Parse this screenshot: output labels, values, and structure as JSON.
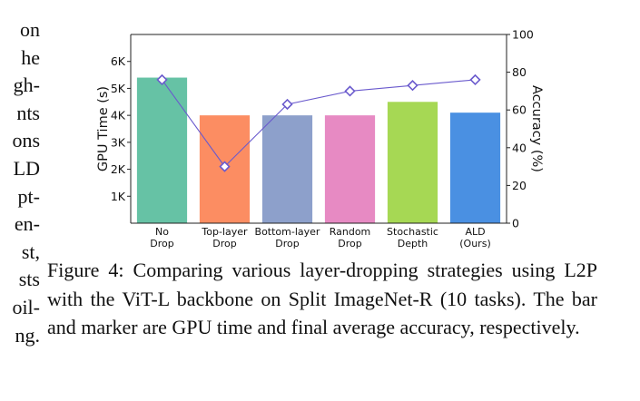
{
  "left_column_fragments": [
    "on",
    "he",
    "gh-",
    "nts",
    "ons",
    "LD",
    "pt-",
    "en-",
    "st,",
    "sts",
    "oil-",
    "ng."
  ],
  "caption": "Figure 4: Comparing various layer-dropping strategies using L2P with the ViT-L backbone on Split ImageNet-R (10 tasks). The bar and marker are GPU time and final average accuracy, respectively.",
  "chart_data": {
    "type": "bar",
    "categories": [
      [
        "No",
        "Drop"
      ],
      [
        "Top-layer",
        "Drop"
      ],
      [
        "Bottom-layer",
        "Drop"
      ],
      [
        "Random",
        "Drop"
      ],
      [
        "Stochastic",
        "Depth"
      ],
      [
        "ALD",
        "(Ours)"
      ]
    ],
    "series": [
      {
        "values": [
          5400,
          4000,
          4000,
          4000,
          4500,
          4100
        ],
        "colors": [
          "#66c2a5",
          "#fc8d62",
          "#8da0cb",
          "#e78ac3",
          "#a6d854",
          "#4a90e2"
        ]
      },
      {
        "values": [
          76,
          30,
          63,
          70,
          73,
          76
        ],
        "color": "#6a5acd"
      }
    ],
    "ylabel": "GPU Time (s)",
    "ylabel_right": "Accuracy (%)",
    "ylim": [
      0,
      7000
    ],
    "yticks": [
      1000,
      2000,
      3000,
      4000,
      5000,
      6000
    ],
    "ytick_labels": [
      "1K",
      "2K",
      "3K",
      "4K",
      "5K",
      "6K"
    ],
    "ylim_right": [
      0,
      100
    ],
    "yticks_right": [
      0,
      20,
      40,
      60,
      80,
      100
    ],
    "grid": false
  }
}
